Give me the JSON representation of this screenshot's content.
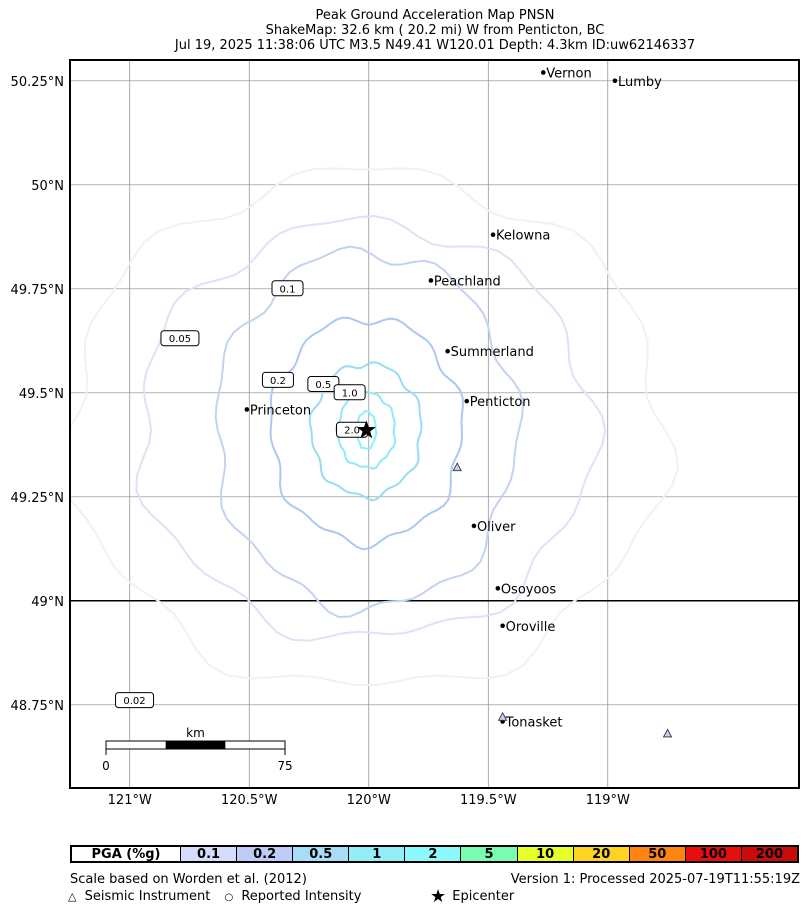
{
  "title": {
    "line1": "Peak Ground Acceleration Map PNSN",
    "line2": "ShakeMap: 32.6 km (  20.2 mi) W from Penticton, BC",
    "line3": "Jul 19, 2025 11:38:06 UTC M3.5 N49.41 W120.01 Depth: 4.3km ID:uw62146337"
  },
  "map": {
    "lon_range": [
      -121.25,
      -118.2
    ],
    "lat_range": [
      48.55,
      50.3
    ],
    "lat_ticks": [
      {
        "value": 50.25,
        "label": "50.25°N"
      },
      {
        "value": 50.0,
        "label": "50°N"
      },
      {
        "value": 49.75,
        "label": "49.75°N"
      },
      {
        "value": 49.5,
        "label": "49.5°N"
      },
      {
        "value": 49.25,
        "label": "49.25°N"
      },
      {
        "value": 49.0,
        "label": "49°N"
      },
      {
        "value": 48.75,
        "label": "48.75°N"
      }
    ],
    "lon_ticks": [
      {
        "value": -121.0,
        "label": "121°W"
      },
      {
        "value": -120.5,
        "label": "120.5°W"
      },
      {
        "value": -120.0,
        "label": "120°W"
      },
      {
        "value": -119.5,
        "label": "119.5°W"
      },
      {
        "value": -119.0,
        "label": "119°W"
      }
    ],
    "border_lat": 49.0,
    "cities": [
      {
        "name": "Vernon",
        "lon": -119.27,
        "lat": 50.27
      },
      {
        "name": "Lumby",
        "lon": -118.97,
        "lat": 50.25
      },
      {
        "name": "Kelowna",
        "lon": -119.48,
        "lat": 49.88
      },
      {
        "name": "Peachland",
        "lon": -119.74,
        "lat": 49.77
      },
      {
        "name": "Summerland",
        "lon": -119.67,
        "lat": 49.6
      },
      {
        "name": "Penticton",
        "lon": -119.59,
        "lat": 49.48
      },
      {
        "name": "Princeton",
        "lon": -120.51,
        "lat": 49.46
      },
      {
        "name": "Oliver",
        "lon": -119.56,
        "lat": 49.18
      },
      {
        "name": "Osoyoos",
        "lon": -119.46,
        "lat": 49.03
      },
      {
        "name": "Oroville",
        "lon": -119.44,
        "lat": 48.94
      },
      {
        "name": "Tonasket",
        "lon": -119.44,
        "lat": 48.71
      }
    ],
    "stations": [
      {
        "lon": -119.63,
        "lat": 49.32
      },
      {
        "lon": -119.44,
        "lat": 48.72
      },
      {
        "lon": -118.75,
        "lat": 48.68
      }
    ],
    "epicenter": {
      "lon": -120.01,
      "lat": 49.41
    },
    "contours": [
      {
        "label": "0.02",
        "rx": 1.25,
        "ry": 0.62,
        "label_lon": -120.98,
        "label_lat": 48.76,
        "color": "#eef1fb"
      },
      {
        "label": "0.05",
        "rx": 0.95,
        "ry": 0.5,
        "label_lon": -120.79,
        "label_lat": 49.63,
        "color": "#dde3f6"
      },
      {
        "label": "0.1",
        "rx": 0.63,
        "ry": 0.43,
        "label_lon": -120.34,
        "label_lat": 49.75,
        "color": "#c4d2f1"
      },
      {
        "label": "0.2",
        "rx": 0.4,
        "ry": 0.27,
        "label_lon": -120.38,
        "label_lat": 49.53,
        "color": "#abc9f0"
      },
      {
        "label": "0.5",
        "rx": 0.23,
        "ry": 0.16,
        "label_lon": -120.19,
        "label_lat": 49.52,
        "color": "#96dcf4"
      },
      {
        "label": "1.0",
        "rx": 0.12,
        "ry": 0.09,
        "label_lon": -120.08,
        "label_lat": 49.5,
        "color": "#8deaf6"
      },
      {
        "label": "2.0",
        "rx": 0.04,
        "ry": 0.045,
        "label_lon": -120.07,
        "label_lat": 49.41,
        "color": "#87f3f8"
      }
    ],
    "scale_bar": {
      "unit": "km",
      "start_label": "0",
      "end_label": "75"
    }
  },
  "legend": {
    "title": "PGA (%g)",
    "items": [
      {
        "label": "0.1",
        "color": "#d6dcfc"
      },
      {
        "label": "0.2",
        "color": "#bfccf7"
      },
      {
        "label": "0.5",
        "color": "#a7ddf6"
      },
      {
        "label": "1",
        "color": "#93eef8"
      },
      {
        "label": "2",
        "color": "#8df9fd"
      },
      {
        "label": "5",
        "color": "#78fbb3"
      },
      {
        "label": "10",
        "color": "#e6ff2a"
      },
      {
        "label": "20",
        "color": "#ffd420"
      },
      {
        "label": "50",
        "color": "#ff8412"
      },
      {
        "label": "100",
        "color": "#e80e0e"
      },
      {
        "label": "200",
        "color": "#c80b0b"
      }
    ]
  },
  "footer": {
    "scale_note": "Scale based on Worden et al. (2012)",
    "version": "Version 1: Processed 2025-07-19T11:55:19Z",
    "seismic_instrument": "Seismic Instrument",
    "reported_intensity": "Reported Intensity",
    "epicenter": "Epicenter"
  }
}
